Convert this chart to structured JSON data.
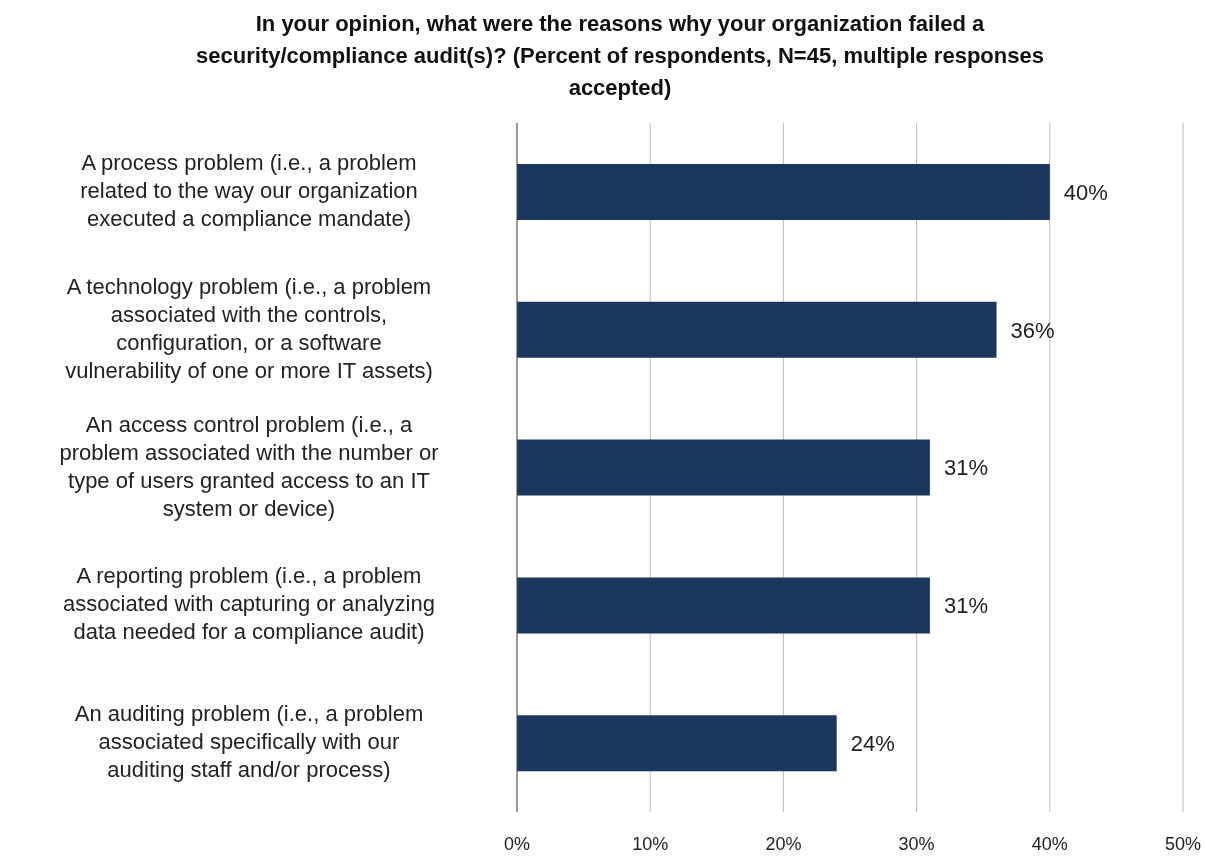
{
  "chart_data": {
    "type": "bar",
    "orientation": "horizontal",
    "title": "In your opinion, what were the reasons why your organization failed a security/compliance audit(s)? (Percent of respondents, N=45, multiple responses accepted)",
    "categories": [
      "A process problem (i.e., a problem related to the way our organization executed a compliance mandate)",
      "A technology problem (i.e., a problem associated with the controls, configuration, or a software vulnerability of one or more IT assets)",
      "An access control problem (i.e., a problem associated with the number or type of users granted access to an IT system or device)",
      "A reporting problem (i.e., a problem associated with capturing or analyzing data needed for a compliance audit)",
      "An auditing problem (i.e., a problem associated specifically with our auditing staff and/or process)"
    ],
    "values": [
      40,
      36,
      31,
      31,
      24
    ],
    "value_labels": [
      "40%",
      "36%",
      "31%",
      "31%",
      "24%"
    ],
    "color": "#1b375d",
    "xlim": [
      0,
      50
    ],
    "xticks": [
      {
        "value": 0,
        "label": "0%"
      },
      {
        "value": 10,
        "label": "10%"
      },
      {
        "value": 20,
        "label": "20%"
      },
      {
        "value": 30,
        "label": "30%"
      },
      {
        "value": 40,
        "label": "40%"
      },
      {
        "value": 50,
        "label": "50%"
      }
    ],
    "grid": "x"
  }
}
